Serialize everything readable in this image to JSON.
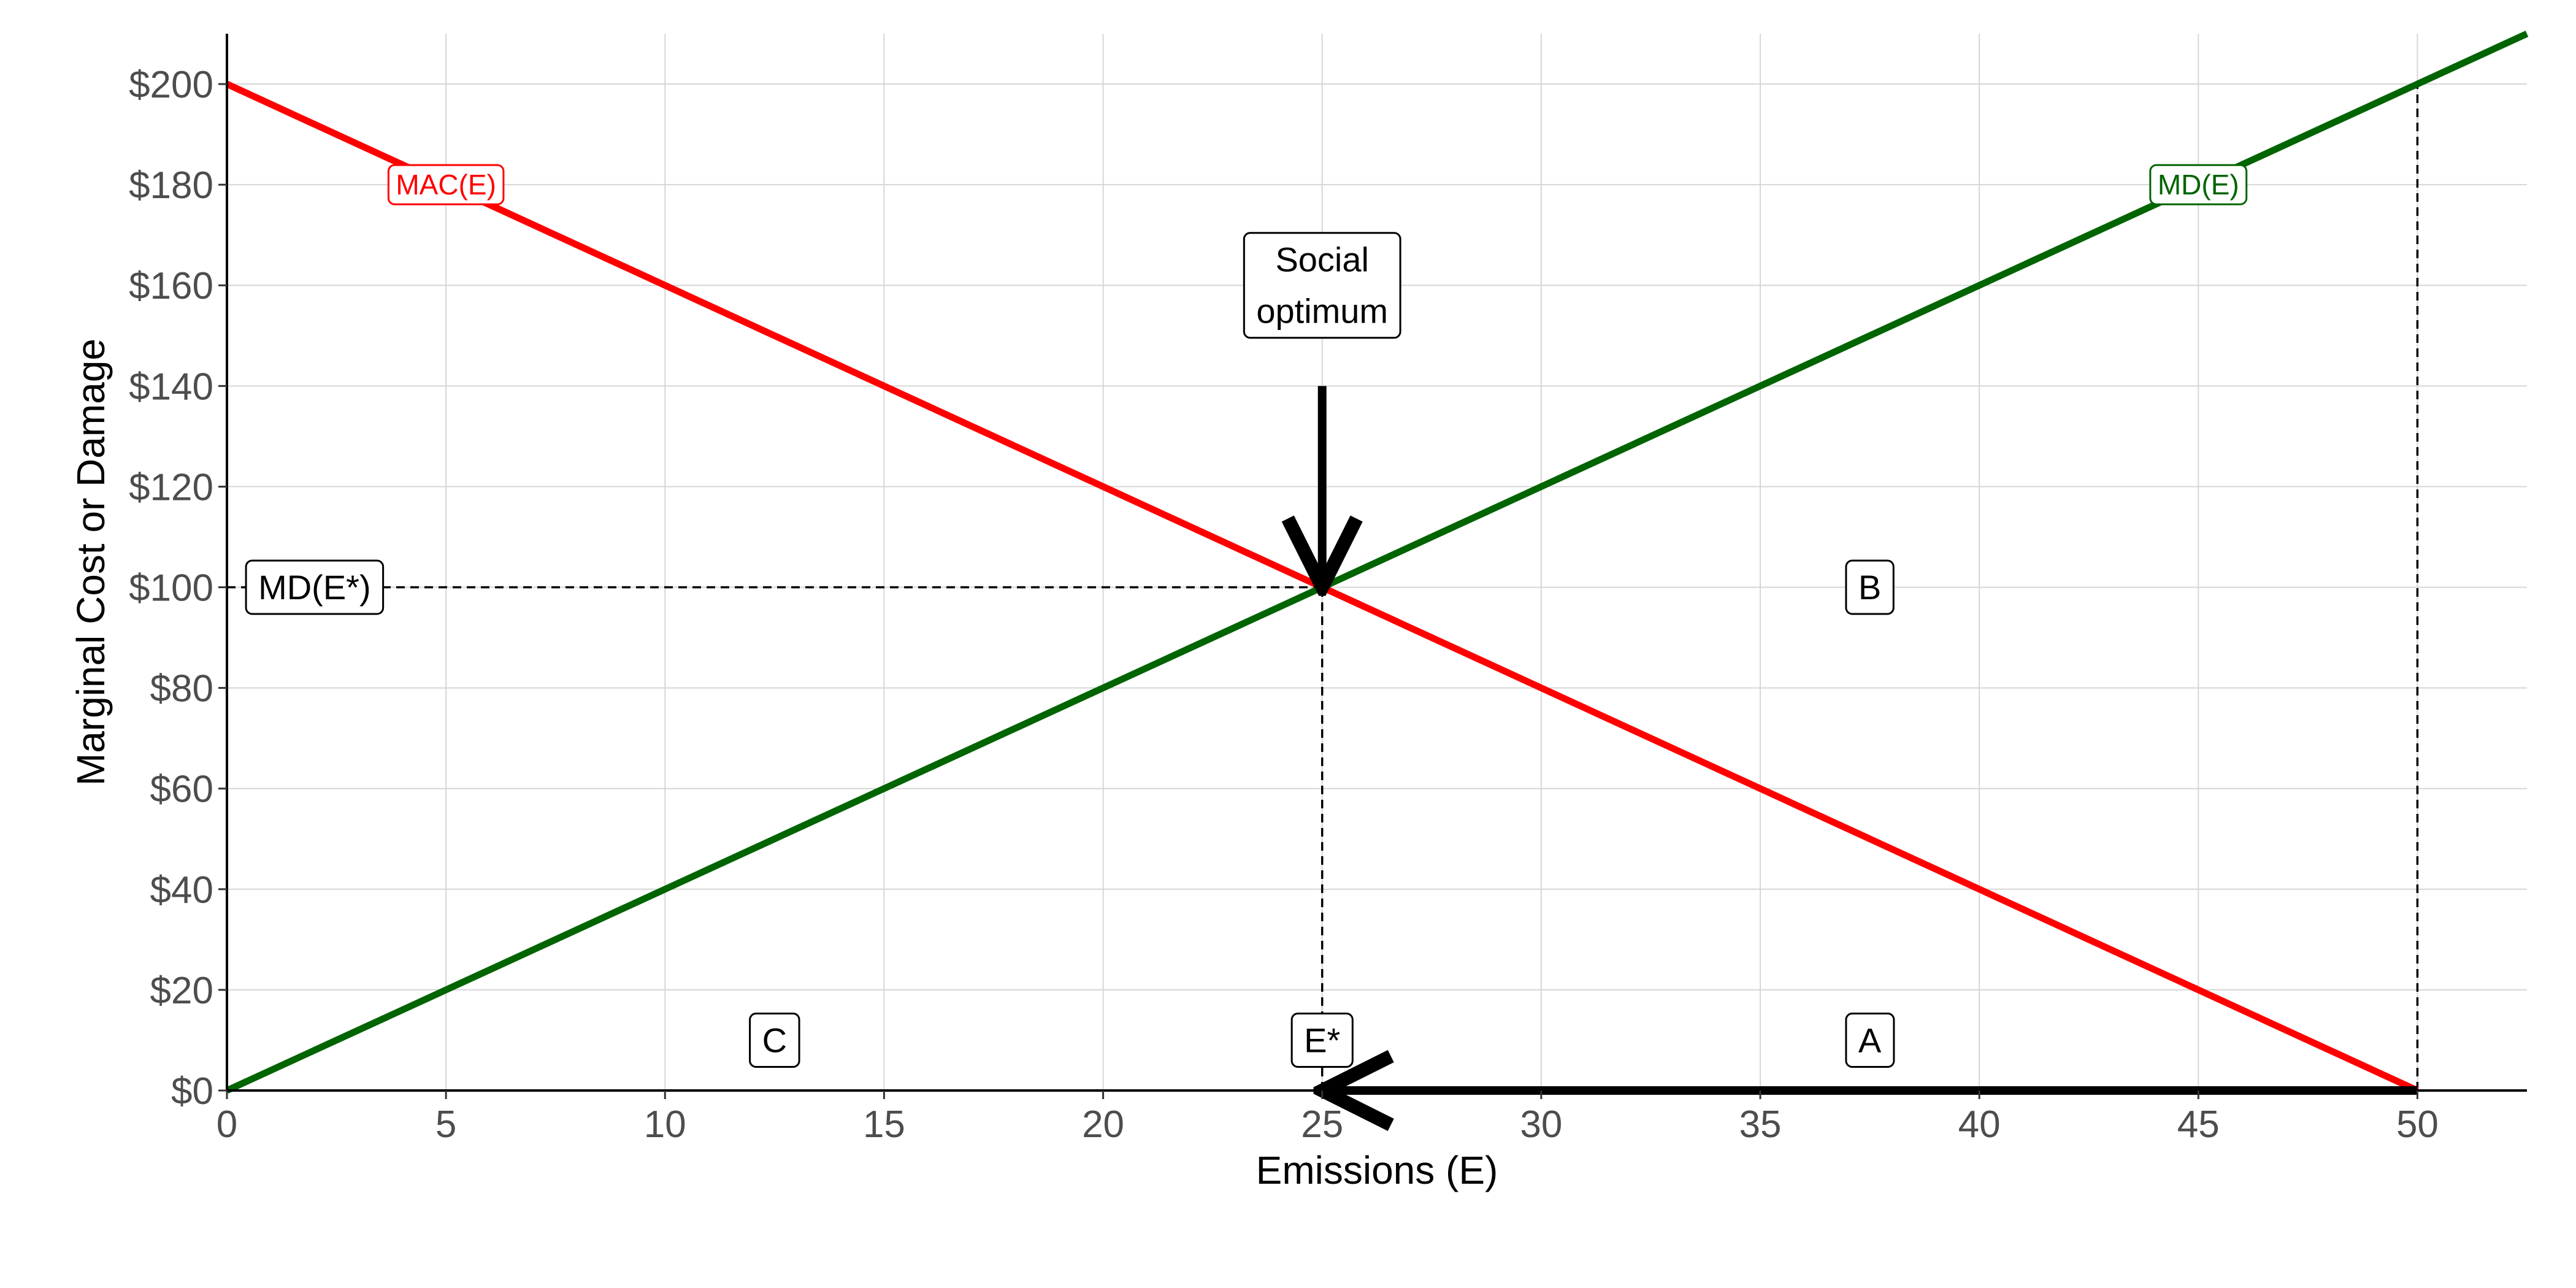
{
  "chart_data": {
    "type": "line",
    "title": "",
    "xlabel": "Emissions (E)",
    "ylabel": "Marginal Cost or Damage",
    "xlim": [
      0,
      52.5
    ],
    "ylim": [
      0,
      210
    ],
    "x_ticks": [
      0,
      5,
      10,
      15,
      20,
      25,
      30,
      35,
      40,
      45,
      50
    ],
    "x_tick_labels": [
      "0",
      "5",
      "10",
      "15",
      "20",
      "25",
      "30",
      "35",
      "40",
      "45",
      "50"
    ],
    "y_ticks": [
      0,
      20,
      40,
      60,
      80,
      100,
      120,
      140,
      160,
      180,
      200
    ],
    "y_tick_labels": [
      "$0",
      "$20",
      "$40",
      "$60",
      "$80",
      "$100",
      "$120",
      "$140",
      "$160",
      "$180",
      "$200"
    ],
    "grid": true,
    "series": [
      {
        "name": "MAC(E)",
        "color": "#ff0000",
        "x": [
          0,
          50
        ],
        "y": [
          200,
          0
        ]
      },
      {
        "name": "MD(E)",
        "color": "#006400",
        "x": [
          0,
          52.5
        ],
        "y": [
          0,
          210
        ]
      }
    ],
    "curve_labels": [
      {
        "text": "MAC(E)",
        "x": 5,
        "y": 180,
        "color": "#ff0000"
      },
      {
        "text": "MD(E)",
        "x": 45,
        "y": 180,
        "color": "#006400"
      }
    ],
    "reference_lines": [
      {
        "from": [
          0,
          100
        ],
        "to": [
          25,
          100
        ],
        "style": "dashed"
      },
      {
        "from": [
          25,
          0
        ],
        "to": [
          25,
          100
        ],
        "style": "dashed"
      },
      {
        "from": [
          50,
          0
        ],
        "to": [
          50,
          200
        ],
        "style": "dashed"
      }
    ],
    "arrows": [
      {
        "from": [
          25,
          140
        ],
        "to": [
          25,
          100
        ]
      },
      {
        "from": [
          50,
          0
        ],
        "to": [
          25,
          0
        ]
      }
    ],
    "annotations": [
      {
        "text": "Social optimum",
        "lines": [
          "Social",
          "optimum"
        ],
        "x": 25,
        "y": 160
      },
      {
        "text": "MD(E*)",
        "x": 2,
        "y": 100
      },
      {
        "text": "B",
        "x": 37.5,
        "y": 100
      },
      {
        "text": "C",
        "x": 12.5,
        "y": 10
      },
      {
        "text": "E*",
        "x": 25,
        "y": 10
      },
      {
        "text": "A",
        "x": 37.5,
        "y": 10
      }
    ],
    "colors": {
      "mac": "#ff0000",
      "md": "#006400",
      "axis": "#000000",
      "grid": "#d6d6d6",
      "tick_text": "#4d4d4d"
    }
  }
}
